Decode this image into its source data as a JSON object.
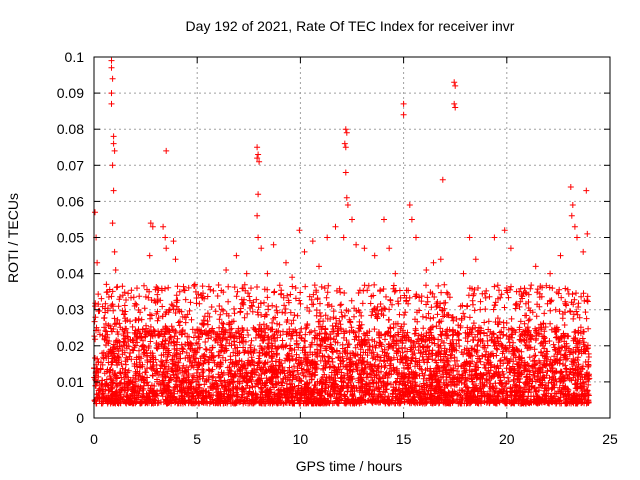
{
  "chart_data": {
    "type": "scatter",
    "title": "Day 192 of 2021, Rate Of TEC Index for receiver invr",
    "xlabel": "GPS time / hours",
    "ylabel": "ROTI / TECUs",
    "xlim": [
      0,
      25
    ],
    "ylim": [
      0,
      0.1
    ],
    "x_ticks": [
      0,
      5,
      10,
      15,
      20,
      25
    ],
    "y_ticks": [
      0,
      0.01,
      0.02,
      0.03,
      0.04,
      0.05,
      0.06,
      0.07,
      0.08,
      0.09,
      0.1
    ],
    "x_tick_labels": [
      "0",
      "5",
      "10",
      "15",
      "20",
      "25"
    ],
    "y_tick_labels": [
      "0",
      "0.01",
      "0.02",
      "0.03",
      "0.04",
      "0.05",
      "0.06",
      "0.07",
      "0.08",
      "0.09",
      "0.1"
    ],
    "grid": true,
    "marker": "+",
    "series": [
      {
        "name": "ROTI",
        "color": "#ff0000",
        "x_range": [
          0,
          24
        ],
        "baseline_range": [
          0.004,
          0.025
        ],
        "points": [
          {
            "x": 0.05,
            "y": 0.057
          },
          {
            "x": 0.1,
            "y": 0.05
          },
          {
            "x": 0.15,
            "y": 0.043
          },
          {
            "x": 0.85,
            "y": 0.099
          },
          {
            "x": 0.85,
            "y": 0.097
          },
          {
            "x": 0.9,
            "y": 0.094
          },
          {
            "x": 0.85,
            "y": 0.09
          },
          {
            "x": 0.85,
            "y": 0.087
          },
          {
            "x": 0.95,
            "y": 0.078
          },
          {
            "x": 0.95,
            "y": 0.076
          },
          {
            "x": 1.0,
            "y": 0.074
          },
          {
            "x": 0.9,
            "y": 0.07
          },
          {
            "x": 0.95,
            "y": 0.063
          },
          {
            "x": 0.9,
            "y": 0.054
          },
          {
            "x": 1.0,
            "y": 0.046
          },
          {
            "x": 1.05,
            "y": 0.041
          },
          {
            "x": 0.6,
            "y": 0.037
          },
          {
            "x": 1.4,
            "y": 0.034
          },
          {
            "x": 2.75,
            "y": 0.054
          },
          {
            "x": 2.85,
            "y": 0.053
          },
          {
            "x": 2.7,
            "y": 0.045
          },
          {
            "x": 3.35,
            "y": 0.053
          },
          {
            "x": 3.45,
            "y": 0.05
          },
          {
            "x": 3.5,
            "y": 0.047
          },
          {
            "x": 3.5,
            "y": 0.074
          },
          {
            "x": 3.85,
            "y": 0.049
          },
          {
            "x": 3.95,
            "y": 0.044
          },
          {
            "x": 4.3,
            "y": 0.028
          },
          {
            "x": 5.2,
            "y": 0.034
          },
          {
            "x": 5.6,
            "y": 0.028
          },
          {
            "x": 6.4,
            "y": 0.041
          },
          {
            "x": 6.9,
            "y": 0.045
          },
          {
            "x": 7.4,
            "y": 0.04
          },
          {
            "x": 7.9,
            "y": 0.075
          },
          {
            "x": 7.95,
            "y": 0.073
          },
          {
            "x": 7.9,
            "y": 0.072
          },
          {
            "x": 8.0,
            "y": 0.071
          },
          {
            "x": 7.95,
            "y": 0.062
          },
          {
            "x": 7.9,
            "y": 0.056
          },
          {
            "x": 7.95,
            "y": 0.05
          },
          {
            "x": 8.1,
            "y": 0.047
          },
          {
            "x": 8.4,
            "y": 0.04
          },
          {
            "x": 8.7,
            "y": 0.048
          },
          {
            "x": 9.3,
            "y": 0.043
          },
          {
            "x": 9.6,
            "y": 0.039
          },
          {
            "x": 9.95,
            "y": 0.052
          },
          {
            "x": 10.2,
            "y": 0.046
          },
          {
            "x": 10.6,
            "y": 0.049
          },
          {
            "x": 10.9,
            "y": 0.042
          },
          {
            "x": 11.3,
            "y": 0.05
          },
          {
            "x": 11.7,
            "y": 0.053
          },
          {
            "x": 12.2,
            "y": 0.08
          },
          {
            "x": 12.25,
            "y": 0.079
          },
          {
            "x": 12.15,
            "y": 0.076
          },
          {
            "x": 12.2,
            "y": 0.075
          },
          {
            "x": 12.2,
            "y": 0.068
          },
          {
            "x": 12.25,
            "y": 0.061
          },
          {
            "x": 12.3,
            "y": 0.059
          },
          {
            "x": 12.5,
            "y": 0.055
          },
          {
            "x": 12.1,
            "y": 0.05
          },
          {
            "x": 12.7,
            "y": 0.048
          },
          {
            "x": 13.1,
            "y": 0.047
          },
          {
            "x": 13.6,
            "y": 0.045
          },
          {
            "x": 14.05,
            "y": 0.055
          },
          {
            "x": 14.3,
            "y": 0.047
          },
          {
            "x": 14.6,
            "y": 0.04
          },
          {
            "x": 15.0,
            "y": 0.087
          },
          {
            "x": 15.0,
            "y": 0.084
          },
          {
            "x": 15.3,
            "y": 0.059
          },
          {
            "x": 15.4,
            "y": 0.055
          },
          {
            "x": 15.6,
            "y": 0.05
          },
          {
            "x": 16.1,
            "y": 0.041
          },
          {
            "x": 16.45,
            "y": 0.043
          },
          {
            "x": 16.9,
            "y": 0.066
          },
          {
            "x": 16.8,
            "y": 0.044
          },
          {
            "x": 17.45,
            "y": 0.093
          },
          {
            "x": 17.5,
            "y": 0.092
          },
          {
            "x": 17.45,
            "y": 0.087
          },
          {
            "x": 17.5,
            "y": 0.086
          },
          {
            "x": 17.9,
            "y": 0.04
          },
          {
            "x": 18.2,
            "y": 0.05
          },
          {
            "x": 18.5,
            "y": 0.044
          },
          {
            "x": 19.4,
            "y": 0.05
          },
          {
            "x": 19.9,
            "y": 0.052
          },
          {
            "x": 20.2,
            "y": 0.047
          },
          {
            "x": 20.6,
            "y": 0.035
          },
          {
            "x": 21.4,
            "y": 0.042
          },
          {
            "x": 22.1,
            "y": 0.04
          },
          {
            "x": 22.6,
            "y": 0.045
          },
          {
            "x": 23.1,
            "y": 0.064
          },
          {
            "x": 23.2,
            "y": 0.059
          },
          {
            "x": 23.15,
            "y": 0.056
          },
          {
            "x": 23.3,
            "y": 0.053
          },
          {
            "x": 23.4,
            "y": 0.05
          },
          {
            "x": 23.7,
            "y": 0.046
          },
          {
            "x": 23.85,
            "y": 0.063
          },
          {
            "x": 23.9,
            "y": 0.051
          }
        ]
      }
    ]
  }
}
